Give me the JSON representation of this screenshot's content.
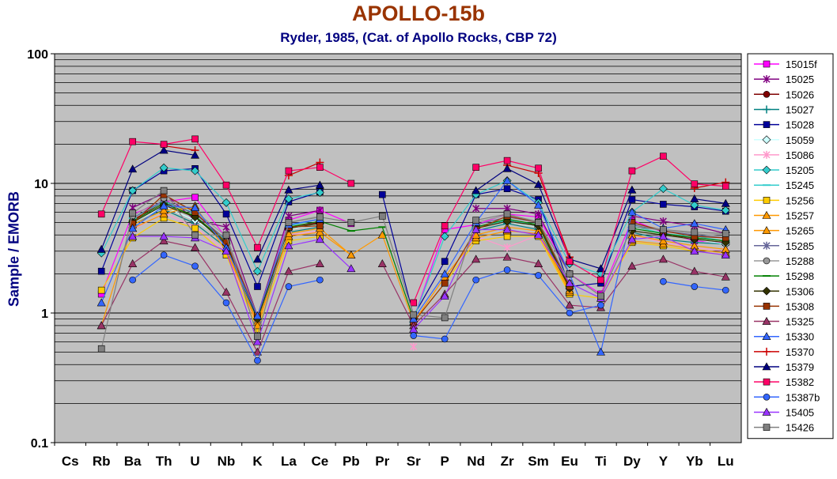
{
  "chart_data": {
    "type": "line",
    "title": "APOLLO-15b",
    "subtitle": "Ryder, 1985, (Cat. of Apollo Rocks, CBP 72)",
    "ylabel": "Sample /  EMORB",
    "xlabel": "",
    "y_scale": "log",
    "ylim": [
      0.1,
      100
    ],
    "y_ticks": [
      "0.1",
      "1",
      "10",
      "100"
    ],
    "grid": true,
    "legend_position": "right",
    "categories": [
      "Cs",
      "Rb",
      "Ba",
      "Th",
      "U",
      "Nb",
      "K",
      "La",
      "Ce",
      "Pb",
      "Pr",
      "Sr",
      "P",
      "Nd",
      "Zr",
      "Sm",
      "Eu",
      "Ti",
      "Dy",
      "Y",
      "Yb",
      "Lu"
    ],
    "series": [
      {
        "name": "15015f",
        "color": "#ff00ff",
        "marker": "square",
        "values": [
          null,
          1.4,
          5.8,
          7.2,
          7.8,
          3.8,
          0.9,
          5.2,
          6.2,
          4.9,
          null,
          0.9,
          4.4,
          4.8,
          5.8,
          5.5,
          2.0,
          1.4,
          5.2,
          4.2,
          3.6,
          3.5
        ]
      },
      {
        "name": "15025",
        "color": "#800080",
        "marker": "star",
        "values": [
          null,
          null,
          6.5,
          8.4,
          5.2,
          4.6,
          0.95,
          5.6,
          6.2,
          null,
          null,
          0.9,
          null,
          6.4,
          6.4,
          5.8,
          2.0,
          null,
          5.6,
          5.1,
          4.7,
          4.1
        ]
      },
      {
        "name": "15026",
        "color": "#800000",
        "marker": "circle",
        "values": [
          null,
          null,
          5.2,
          7.2,
          5.5,
          3.4,
          0.9,
          4.6,
          5.0,
          null,
          null,
          0.9,
          null,
          4.6,
          5.2,
          4.7,
          1.6,
          null,
          4.6,
          4.0,
          3.8,
          3.6
        ]
      },
      {
        "name": "15027",
        "color": "#008080",
        "marker": "plus",
        "values": [
          null,
          null,
          4.8,
          6.3,
          4.9,
          3.2,
          0.85,
          4.2,
          4.6,
          null,
          null,
          0.9,
          null,
          4.3,
          4.9,
          4.4,
          1.55,
          null,
          4.2,
          3.7,
          3.5,
          3.4
        ]
      },
      {
        "name": "15028",
        "color": "#000099",
        "marker": "square",
        "values": [
          null,
          2.1,
          8.8,
          12.5,
          13.0,
          5.8,
          1.6,
          7.2,
          8.6,
          null,
          8.2,
          0.95,
          2.5,
          8.2,
          9.1,
          7.5,
          1.6,
          1.7,
          7.5,
          6.9,
          6.6,
          6.1
        ]
      },
      {
        "name": "15059",
        "color": "#ccffff",
        "marker": "diamond",
        "values": [
          null,
          null,
          5.0,
          6.6,
          5.2,
          3.6,
          0.9,
          4.4,
          4.9,
          null,
          null,
          0.9,
          null,
          4.5,
          5.1,
          4.6,
          1.6,
          null,
          4.6,
          4.0,
          3.7,
          3.4
        ]
      },
      {
        "name": "15086",
        "color": "#ff99cc",
        "marker": "star",
        "values": [
          null,
          null,
          4.4,
          5.9,
          4.6,
          3.0,
          0.8,
          4.0,
          4.3,
          null,
          null,
          0.55,
          null,
          3.9,
          3.2,
          4.0,
          1.5,
          null,
          4.0,
          3.5,
          3.2,
          3.0
        ]
      },
      {
        "name": "15205",
        "color": "#33cccc",
        "marker": "diamond",
        "values": [
          null,
          2.9,
          8.8,
          13.2,
          12.5,
          7.1,
          2.1,
          7.6,
          8.5,
          null,
          null,
          0.9,
          3.9,
          8.2,
          10.5,
          7.1,
          2.4,
          2.0,
          6.0,
          9.1,
          6.8,
          6.2
        ]
      },
      {
        "name": "15245",
        "color": "#33cccc",
        "marker": "dash",
        "values": [
          null,
          null,
          5.4,
          7.2,
          5.9,
          3.6,
          0.9,
          4.7,
          5.3,
          null,
          null,
          0.85,
          null,
          4.6,
          5.2,
          4.8,
          1.6,
          null,
          4.7,
          4.1,
          3.9,
          3.6
        ]
      },
      {
        "name": "15256",
        "color": "#ffcc00",
        "marker": "square",
        "values": [
          null,
          1.5,
          3.8,
          5.4,
          4.5,
          2.8,
          0.75,
          3.6,
          3.9,
          null,
          null,
          0.85,
          1.7,
          3.6,
          3.9,
          3.9,
          1.4,
          1.3,
          3.5,
          3.3,
          3.0,
          2.8
        ]
      },
      {
        "name": "15257",
        "color": "#ff9900",
        "marker": "triangle",
        "values": [
          null,
          null,
          4.5,
          5.8,
          6.7,
          3.0,
          0.85,
          3.9,
          4.2,
          2.8,
          4.0,
          0.85,
          1.9,
          3.8,
          4.3,
          4.1,
          1.45,
          null,
          3.6,
          3.4,
          3.1,
          2.9
        ]
      },
      {
        "name": "15265",
        "color": "#ff9900",
        "marker": "triangle",
        "values": [
          null,
          0.8,
          4.8,
          6.2,
          6.5,
          3.2,
          0.8,
          4.1,
          4.5,
          2.8,
          null,
          0.85,
          null,
          4.0,
          4.6,
          4.3,
          1.5,
          null,
          4.0,
          3.6,
          3.3,
          3.1
        ]
      },
      {
        "name": "15285",
        "color": "#666699",
        "marker": "star",
        "values": [
          null,
          null,
          5.4,
          7.4,
          5.8,
          3.7,
          0.9,
          4.8,
          5.3,
          null,
          null,
          0.9,
          null,
          4.8,
          5.5,
          5.0,
          1.65,
          null,
          4.8,
          4.3,
          4.0,
          3.8
        ]
      },
      {
        "name": "15288",
        "color": "#999999",
        "marker": "circle",
        "values": [
          null,
          null,
          5.6,
          7.7,
          6.1,
          3.9,
          0.95,
          5.0,
          5.6,
          null,
          null,
          0.9,
          null,
          5.0,
          5.7,
          5.1,
          1.7,
          null,
          4.9,
          4.4,
          4.1,
          3.9
        ]
      },
      {
        "name": "15298",
        "color": "#008000",
        "marker": "dash",
        "values": [
          null,
          null,
          5.1,
          7.0,
          5.6,
          3.5,
          0.9,
          4.6,
          5.1,
          4.3,
          4.6,
          0.9,
          null,
          4.6,
          5.3,
          4.8,
          1.6,
          null,
          4.5,
          4.1,
          3.8,
          3.6
        ]
      },
      {
        "name": "15306",
        "color": "#333300",
        "marker": "diamond",
        "values": [
          null,
          null,
          5.0,
          6.8,
          5.5,
          3.4,
          0.9,
          4.5,
          4.9,
          null,
          null,
          0.9,
          null,
          4.5,
          5.1,
          4.7,
          1.55,
          null,
          4.3,
          4.0,
          3.7,
          3.5
        ]
      },
      {
        "name": "15308",
        "color": "#993300",
        "marker": "square",
        "values": [
          null,
          null,
          4.9,
          8.2,
          6.0,
          3.5,
          0.95,
          4.6,
          4.7,
          null,
          null,
          0.85,
          1.7,
          4.4,
          5.6,
          5.0,
          1.6,
          null,
          5.0,
          4.3,
          3.9,
          3.8
        ]
      },
      {
        "name": "15325",
        "color": "#993366",
        "marker": "triangle",
        "values": [
          null,
          0.8,
          2.4,
          3.6,
          3.2,
          1.45,
          0.5,
          2.1,
          2.4,
          null,
          2.4,
          0.8,
          1.4,
          2.6,
          2.7,
          2.4,
          1.15,
          1.1,
          2.3,
          2.6,
          2.1,
          1.9
        ]
      },
      {
        "name": "15330",
        "color": "#3366ff",
        "marker": "triangle",
        "values": [
          null,
          1.2,
          4.5,
          6.7,
          6.5,
          3.2,
          0.95,
          4.8,
          5.3,
          null,
          null,
          0.9,
          2.0,
          5.0,
          10.5,
          6.8,
          2.0,
          0.5,
          6.0,
          4.5,
          4.9,
          4.4
        ]
      },
      {
        "name": "15370",
        "color": "#cc0000",
        "marker": "plus",
        "values": [
          null,
          null,
          null,
          19.5,
          18.0,
          null,
          null,
          11.5,
          14.5,
          null,
          null,
          null,
          null,
          null,
          13.8,
          12.0,
          2.7,
          null,
          null,
          null,
          9.2,
          10.2
        ]
      },
      {
        "name": "15379",
        "color": "#000080",
        "marker": "triangle",
        "values": [
          null,
          3.1,
          12.9,
          18.0,
          16.5,
          null,
          2.6,
          8.9,
          9.7,
          null,
          null,
          null,
          null,
          8.8,
          13.0,
          9.8,
          2.6,
          2.2,
          8.9,
          null,
          7.6,
          7.0
        ]
      },
      {
        "name": "15382",
        "color": "#ff0066",
        "marker": "square",
        "values": [
          null,
          5.8,
          21.0,
          20.0,
          22.0,
          9.7,
          3.2,
          12.5,
          13.3,
          10.0,
          null,
          1.2,
          4.7,
          13.3,
          15.0,
          13.1,
          2.5,
          1.8,
          12.5,
          16.2,
          9.9,
          9.5
        ]
      },
      {
        "name": "15387b",
        "color": "#3366ff",
        "marker": "circle",
        "values": [
          null,
          null,
          1.8,
          2.8,
          2.3,
          1.2,
          0.43,
          1.6,
          1.8,
          null,
          null,
          0.67,
          0.63,
          1.8,
          2.15,
          1.95,
          1.0,
          1.15,
          null,
          1.75,
          1.6,
          1.5
        ]
      },
      {
        "name": "15405",
        "color": "#9933ff",
        "marker": "triangle",
        "values": [
          null,
          null,
          3.9,
          3.9,
          3.8,
          3.0,
          0.6,
          3.3,
          3.7,
          2.2,
          null,
          0.75,
          1.35,
          4.4,
          4.4,
          4.0,
          1.7,
          1.3,
          3.7,
          3.9,
          3.0,
          2.8
        ]
      },
      {
        "name": "15426",
        "color": "#808080",
        "marker": "square",
        "values": [
          null,
          0.53,
          5.9,
          8.8,
          4.0,
          4.0,
          0.66,
          5.0,
          5.5,
          5.0,
          5.6,
          0.97,
          0.92,
          5.2,
          5.8,
          5.0,
          2.0,
          1.35,
          4.6,
          4.4,
          4.2,
          4.1
        ]
      }
    ]
  }
}
